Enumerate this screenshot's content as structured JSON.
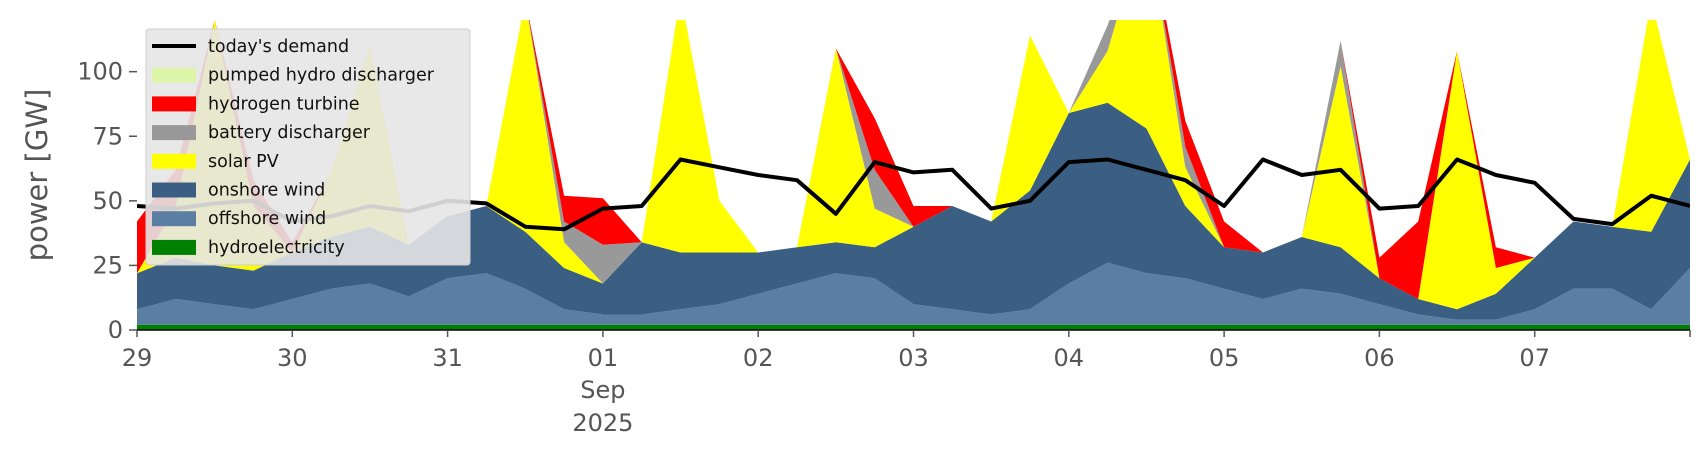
{
  "chart_data": {
    "type": "area",
    "ylabel": "power [GW]",
    "ylim": [
      0,
      120
    ],
    "yticks": [
      0,
      25,
      50,
      75,
      100
    ],
    "xlim": [
      0,
      10
    ],
    "x_tick_labels": [
      "29",
      "30",
      "31",
      "01",
      "02",
      "03",
      "04",
      "05",
      "06",
      "07"
    ],
    "x_sub_labels": {
      "month": "Sep",
      "year": "2025",
      "under_tick": "01"
    },
    "legend_position": "upper left",
    "grid": false,
    "x": [
      0,
      0.25,
      0.5,
      0.75,
      1,
      1.25,
      1.5,
      1.75,
      2,
      2.25,
      2.5,
      2.75,
      3,
      3.25,
      3.5,
      3.75,
      4,
      4.25,
      4.5,
      4.75,
      5,
      5.25,
      5.5,
      5.75,
      6,
      6.25,
      6.5,
      6.75,
      7,
      7.25,
      7.5,
      7.75,
      8,
      8.25,
      8.5,
      8.75,
      9,
      9.25,
      9.5,
      9.75,
      10
    ],
    "series": [
      {
        "name": "hydroelectricity",
        "color": "#008000",
        "values": [
          2,
          2,
          2,
          2,
          2,
          2,
          2,
          2,
          2,
          2,
          2,
          2,
          2,
          2,
          2,
          2,
          2,
          2,
          2,
          2,
          2,
          2,
          2,
          2,
          2,
          2,
          2,
          2,
          2,
          2,
          2,
          2,
          2,
          2,
          2,
          2,
          2,
          2,
          2,
          2,
          2
        ]
      },
      {
        "name": "offshore wind",
        "color": "#5b7fa3",
        "values": [
          6,
          10,
          8,
          6,
          10,
          14,
          16,
          11,
          18,
          20,
          14,
          6,
          4,
          4,
          6,
          8,
          12,
          16,
          20,
          18,
          8,
          6,
          4,
          6,
          16,
          24,
          20,
          18,
          14,
          10,
          14,
          12,
          8,
          4,
          2,
          2,
          6,
          14,
          14,
          6,
          22
        ]
      },
      {
        "name": "onshore wind",
        "color": "#3b5f82",
        "values": [
          14,
          16,
          15,
          15,
          18,
          20,
          22,
          20,
          24,
          26,
          22,
          16,
          12,
          28,
          22,
          20,
          16,
          14,
          12,
          12,
          30,
          40,
          36,
          46,
          66,
          62,
          56,
          28,
          16,
          18,
          20,
          18,
          10,
          6,
          4,
          10,
          20,
          26,
          24,
          30,
          42
        ]
      },
      {
        "name": "solar PV",
        "color": "#ffff00",
        "values": [
          0,
          20,
          95,
          25,
          0,
          25,
          70,
          0,
          0,
          0,
          90,
          10,
          0,
          0,
          100,
          20,
          0,
          0,
          75,
          15,
          0,
          0,
          0,
          60,
          0,
          20,
          82,
          15,
          0,
          0,
          0,
          70,
          0,
          0,
          100,
          10,
          0,
          0,
          0,
          90,
          0
        ]
      },
      {
        "name": "battery discharger",
        "color": "#999999",
        "values": [
          0,
          0,
          0,
          0,
          0,
          0,
          0,
          0,
          0,
          0,
          0,
          8,
          15,
          0,
          0,
          0,
          0,
          0,
          0,
          15,
          0,
          0,
          0,
          0,
          0,
          10,
          0,
          8,
          0,
          0,
          0,
          10,
          0,
          0,
          0,
          0,
          0,
          0,
          0,
          0,
          0
        ]
      },
      {
        "name": "hydrogen turbine",
        "color": "#ff0000",
        "values": [
          20,
          14,
          0,
          10,
          4,
          0,
          0,
          0,
          0,
          0,
          0,
          10,
          18,
          0,
          0,
          0,
          0,
          0,
          0,
          20,
          8,
          0,
          0,
          0,
          0,
          0,
          0,
          10,
          10,
          0,
          0,
          0,
          8,
          30,
          0,
          8,
          0,
          0,
          0,
          0,
          0
        ]
      },
      {
        "name": "pumped hydro discharger",
        "color": "#ddf5a9",
        "values": [
          0,
          0,
          0,
          0,
          0,
          0,
          0,
          0,
          0,
          0,
          0,
          0,
          0,
          0,
          0,
          0,
          0,
          0,
          0,
          0,
          0,
          0,
          0,
          0,
          0,
          0,
          0,
          0,
          0,
          0,
          0,
          0,
          0,
          0,
          0,
          0,
          0,
          0,
          0,
          0,
          0
        ]
      }
    ],
    "demand": {
      "name": "today's demand",
      "color": "#000000",
      "values": [
        48,
        47,
        49,
        50,
        42,
        44,
        48,
        46,
        50,
        49,
        40,
        39,
        47,
        48,
        66,
        63,
        60,
        58,
        45,
        65,
        61,
        62,
        47,
        50,
        65,
        66,
        62,
        58,
        48,
        66,
        60,
        62,
        47,
        48,
        66,
        60,
        57,
        43,
        41,
        52,
        48
      ]
    },
    "legend": [
      {
        "label": "today's demand",
        "color": "#000000",
        "kind": "line"
      },
      {
        "label": "pumped hydro discharger",
        "color": "#ddf5a9",
        "kind": "patch"
      },
      {
        "label": "hydrogen turbine",
        "color": "#ff0000",
        "kind": "patch"
      },
      {
        "label": "battery discharger",
        "color": "#999999",
        "kind": "patch"
      },
      {
        "label": "solar PV",
        "color": "#ffff00",
        "kind": "patch"
      },
      {
        "label": "onshore wind",
        "color": "#3b5f82",
        "kind": "patch"
      },
      {
        "label": "offshore wind",
        "color": "#5b7fa3",
        "kind": "patch"
      },
      {
        "label": "hydroelectricity",
        "color": "#008000",
        "kind": "patch"
      }
    ]
  }
}
